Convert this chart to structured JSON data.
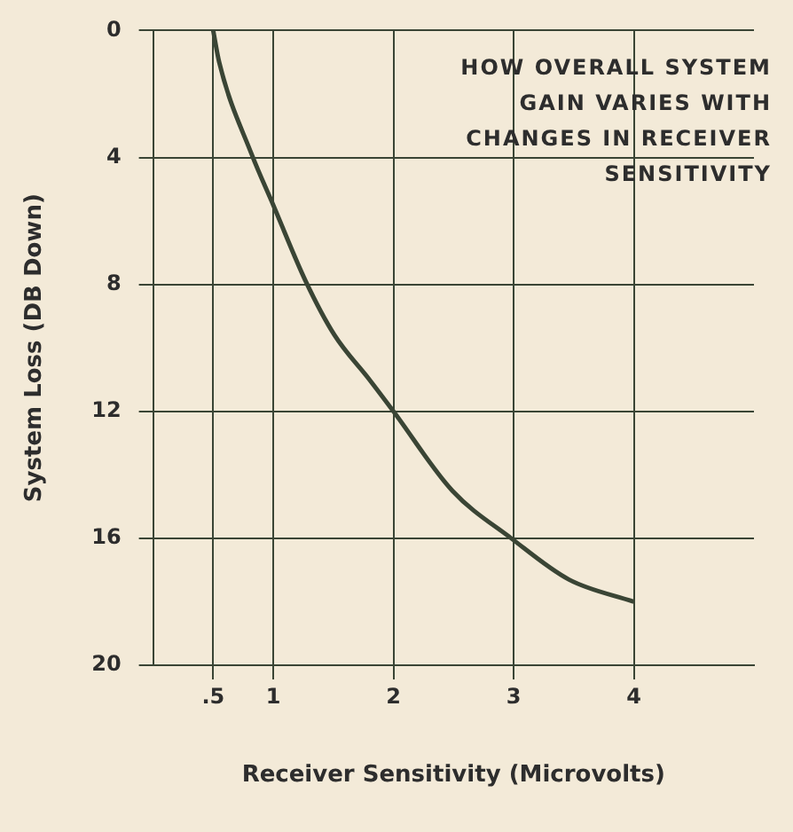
{
  "chart_data": {
    "type": "line",
    "title": "HOW OVERALL SYSTEM GAIN VARIES WITH CHANGES IN RECEIVER SENSITIVITY",
    "xlabel": "Receiver Sensitivity (Microvolts)",
    "ylabel": "System Loss (DB Down)",
    "series": [
      {
        "color": "#3a4535",
        "x": [
          0.5,
          0.55,
          0.82,
          1,
          1.27,
          1.51,
          1.8,
          2,
          2.49,
          2.98,
          3.46,
          4
        ],
        "values": [
          0,
          1,
          3.9,
          5.5,
          7.9,
          9.6,
          11,
          12,
          14.5,
          16,
          17.3,
          18
        ]
      }
    ],
    "xlim": [
      0,
      5
    ],
    "xticks": [
      {
        "value": 0.5,
        "label": ".5"
      },
      1,
      2,
      3,
      4
    ],
    "ylim": [
      20,
      0
    ],
    "yticks": [
      0,
      4,
      8,
      12,
      16,
      20
    ],
    "grid": true,
    "marker": "none",
    "line_style": "solid",
    "legend": false
  }
}
